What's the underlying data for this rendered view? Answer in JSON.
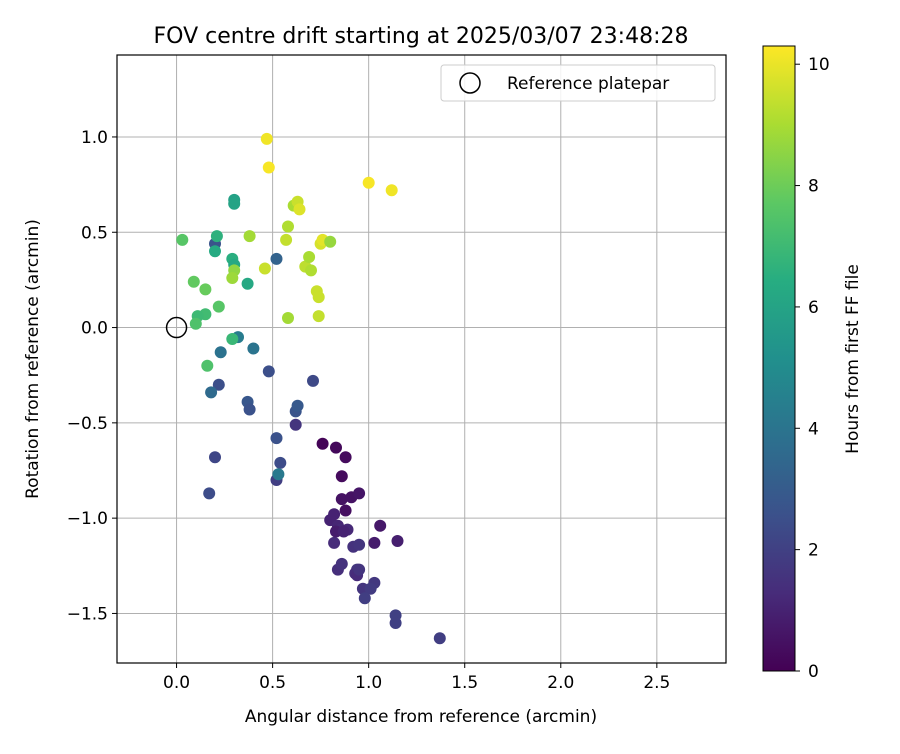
{
  "chart_data": {
    "type": "scatter",
    "title": "FOV centre drift starting at 2025/03/07 23:48:28",
    "xlabel": "Angular distance from reference (arcmin)",
    "ylabel": "Rotation from reference (arcmin)",
    "xlim": [
      -0.31,
      2.86
    ],
    "ylim": [
      -1.76,
      1.43
    ],
    "xticks": [
      0.0,
      0.5,
      1.0,
      1.5,
      2.0,
      2.5
    ],
    "xtick_labels": [
      "0.0",
      "0.5",
      "1.0",
      "1.5",
      "2.0",
      "2.5"
    ],
    "yticks": [
      -1.5,
      -1.0,
      -0.5,
      0.0,
      0.5,
      1.0
    ],
    "ytick_labels": [
      "−1.5",
      "−1.0",
      "−0.5",
      "0.0",
      "0.5",
      "1.0"
    ],
    "grid": true,
    "legend": {
      "placement": "upper right",
      "entries": [
        "Reference platepar"
      ]
    },
    "reference_point": {
      "x": 0.0,
      "y": 0.0,
      "label": "Reference platepar"
    },
    "colorbar": {
      "label": "Hours from first FF file",
      "colormap": "viridis",
      "range": [
        0,
        10.3
      ],
      "ticks": [
        0,
        2,
        4,
        6,
        8,
        10
      ],
      "tick_labels": [
        "0",
        "2",
        "4",
        "6",
        "8",
        "10"
      ]
    },
    "series": [
      {
        "x": [
          0.76,
          0.83,
          0.88,
          0.86,
          0.88,
          0.86,
          0.91,
          0.95,
          1.06,
          1.03,
          1.15,
          0.8,
          0.82,
          0.84,
          0.85,
          0.89,
          0.82,
          0.84,
          0.86,
          0.92,
          0.95,
          0.97,
          0.94,
          1.03,
          1.01,
          0.98,
          1.14,
          1.14,
          1.37,
          0.93,
          0.83,
          0.87,
          0.94,
          0.95
        ],
        "y": [
          -0.61,
          -0.63,
          -0.68,
          -0.78,
          -0.96,
          -0.9,
          -0.89,
          -0.87,
          -1.04,
          -1.13,
          -1.12,
          -1.01,
          -0.98,
          -1.04,
          -1.06,
          -1.06,
          -1.13,
          -1.27,
          -1.24,
          -1.15,
          -1.14,
          -1.37,
          -1.27,
          -1.34,
          -1.37,
          -1.42,
          -1.51,
          -1.55,
          -1.63,
          -1.29,
          -1.07,
          -1.07,
          -1.3,
          -1.27
        ],
        "hours": [
          0.1,
          0.2,
          0.3,
          0.3,
          0.4,
          0.5,
          0.5,
          0.6,
          0.7,
          0.8,
          0.9,
          1.0,
          1.0,
          1.1,
          1.2,
          1.2,
          1.3,
          1.4,
          1.5,
          1.5,
          1.6,
          1.6,
          1.7,
          1.7,
          1.8,
          1.9,
          2.0,
          2.0,
          1.9,
          1.4,
          0.8,
          1.0,
          1.3,
          1.6
        ]
      },
      {
        "x": [
          0.52,
          0.54,
          0.52,
          0.62,
          0.63,
          0.37,
          0.38,
          0.48,
          0.71,
          0.22,
          0.2,
          0.17,
          0.18,
          0.23,
          0.2,
          0.52,
          0.53,
          0.4,
          0.32,
          0.62
        ],
        "y": [
          -0.8,
          -0.71,
          -0.58,
          -0.44,
          -0.41,
          -0.39,
          -0.43,
          -0.23,
          -0.28,
          -0.3,
          -0.68,
          -0.87,
          -0.34,
          -0.13,
          0.44,
          0.36,
          -0.77,
          -0.11,
          -0.05,
          -0.51
        ],
        "hours": [
          1.9,
          2.4,
          2.6,
          2.7,
          2.9,
          2.8,
          2.6,
          2.5,
          2.3,
          2.5,
          2.2,
          2.4,
          3.6,
          3.9,
          2.7,
          3.3,
          4.2,
          4.0,
          4.3,
          1.6
        ]
      },
      {
        "x": [
          0.3,
          0.3,
          0.2,
          0.21,
          0.29,
          0.3,
          0.37,
          0.29,
          0.15,
          0.16,
          0.22,
          0.11,
          0.1,
          0.09,
          0.15
        ],
        "y": [
          0.67,
          0.65,
          0.4,
          0.48,
          0.36,
          0.33,
          0.23,
          -0.06,
          0.07,
          -0.2,
          0.11,
          0.06,
          0.02,
          0.24,
          0.2
        ],
        "hours": [
          5.9,
          6.0,
          6.3,
          6.6,
          6.5,
          6.2,
          6.2,
          6.9,
          7.1,
          7.4,
          7.6,
          7.0,
          7.4,
          7.8,
          7.9
        ]
      },
      {
        "x": [
          0.03,
          0.38,
          0.3,
          0.29,
          0.46,
          0.58,
          0.57,
          0.58,
          0.61,
          0.63,
          0.64,
          0.67,
          0.69,
          0.7,
          0.73,
          0.74,
          0.74,
          0.75,
          0.76,
          0.8
        ],
        "y": [
          0.46,
          0.48,
          0.3,
          0.26,
          0.31,
          0.53,
          0.46,
          0.05,
          0.64,
          0.66,
          0.62,
          0.32,
          0.37,
          0.3,
          0.19,
          0.16,
          0.06,
          0.44,
          0.46,
          0.45
        ],
        "hours": [
          7.6,
          8.9,
          8.6,
          8.8,
          9.5,
          9.1,
          9.4,
          8.9,
          9.0,
          9.5,
          9.8,
          9.3,
          9.0,
          9.1,
          9.5,
          9.5,
          9.4,
          9.7,
          9.9,
          8.7
        ]
      },
      {
        "x": [
          0.47,
          0.48,
          1.0,
          1.12
        ],
        "y": [
          0.99,
          0.84,
          0.76,
          0.72
        ],
        "hours": [
          10.1,
          10.2,
          10.2,
          10.1
        ]
      }
    ]
  }
}
